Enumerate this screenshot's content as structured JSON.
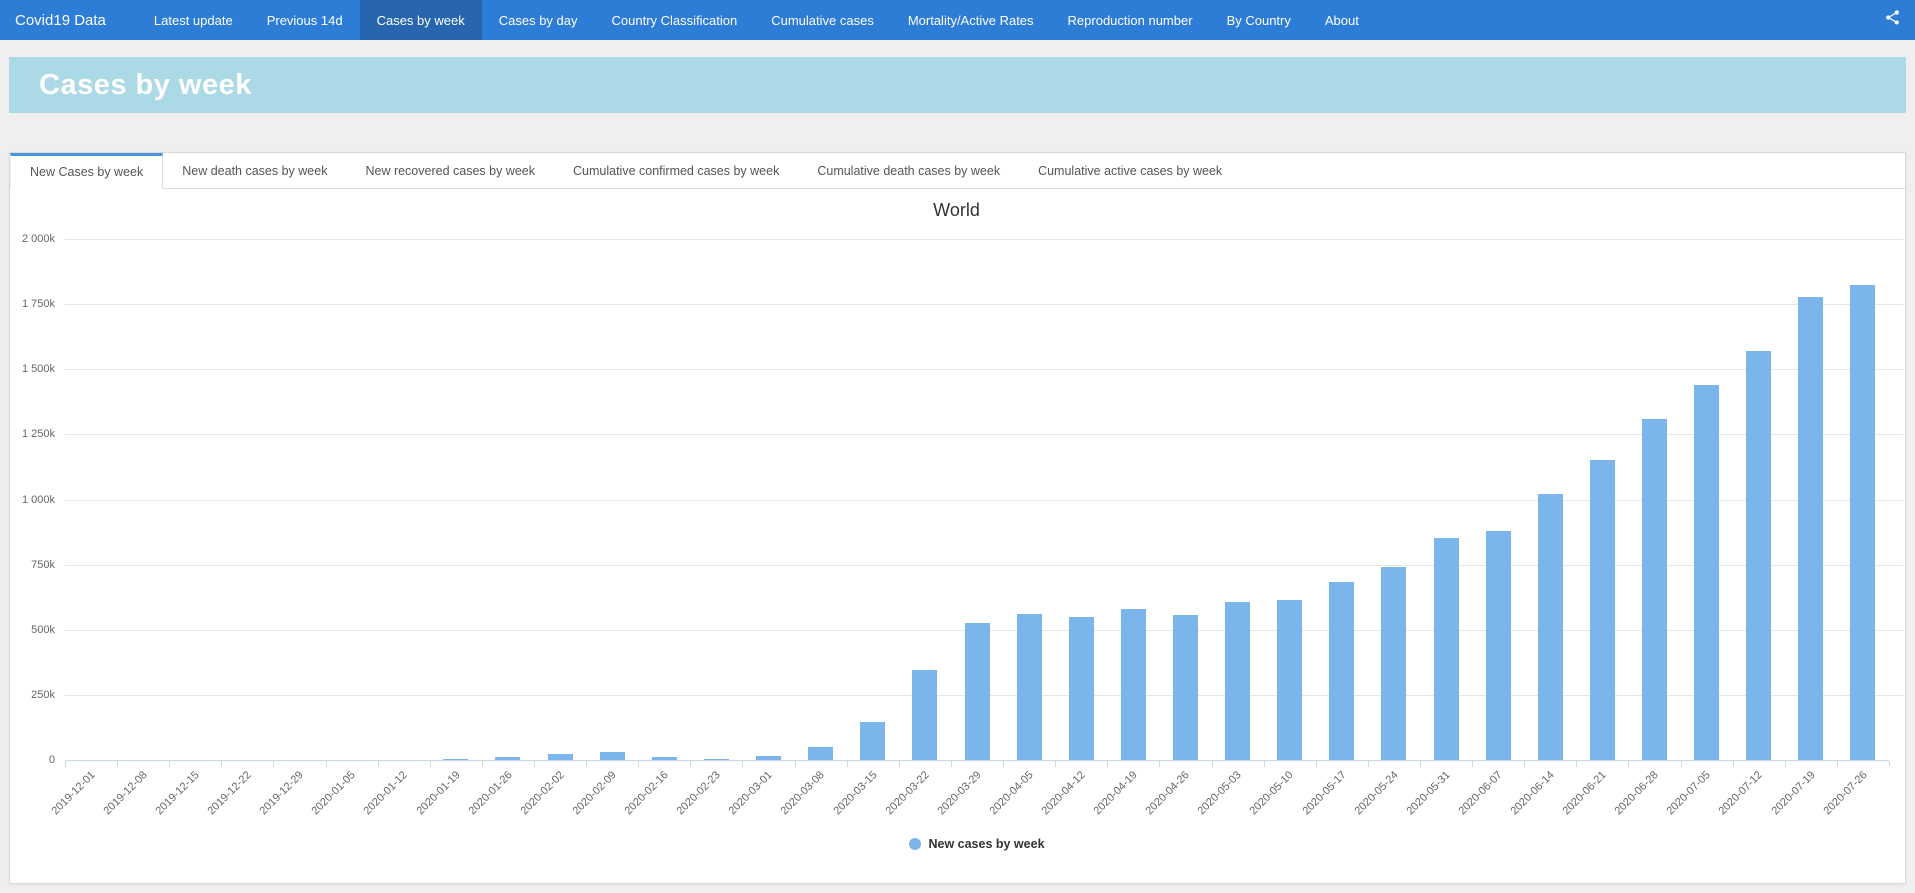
{
  "navbar": {
    "brand": "Covid19 Data",
    "items": [
      {
        "label": "Latest update",
        "active": false
      },
      {
        "label": "Previous 14d",
        "active": false
      },
      {
        "label": "Cases by week",
        "active": true
      },
      {
        "label": "Cases by day",
        "active": false
      },
      {
        "label": "Country Classification",
        "active": false
      },
      {
        "label": "Cumulative cases",
        "active": false
      },
      {
        "label": "Mortality/Active Rates",
        "active": false
      },
      {
        "label": "Reproduction number",
        "active": false
      },
      {
        "label": "By Country",
        "active": false
      },
      {
        "label": "About",
        "active": false
      }
    ],
    "share_icon": "share-icon"
  },
  "page_header": {
    "title": "Cases by week"
  },
  "tabs": [
    {
      "label": "New Cases by week",
      "active": true
    },
    {
      "label": "New death cases by week",
      "active": false
    },
    {
      "label": "New recovered cases by week",
      "active": false
    },
    {
      "label": "Cumulative confirmed cases by week",
      "active": false
    },
    {
      "label": "Cumulative death cases by week",
      "active": false
    },
    {
      "label": "Cumulative active cases by week",
      "active": false
    }
  ],
  "colors": {
    "nav_bg": "#2d7cd6",
    "nav_active_bg": "#2765ae",
    "banner_bg": "#abd9e6",
    "tab_accent": "#4a96db",
    "bar": "#7cb5ec",
    "gridline": "#e6e6e6",
    "axis_line": "#ccd6eb"
  },
  "chart_data": {
    "type": "bar",
    "title": "World",
    "categories": [
      "2019-12-01",
      "2019-12-08",
      "2019-12-15",
      "2019-12-22",
      "2019-12-29",
      "2020-01-05",
      "2020-01-12",
      "2020-01-19",
      "2020-01-26",
      "2020-02-02",
      "2020-02-09",
      "2020-02-16",
      "2020-02-23",
      "2020-03-01",
      "2020-03-08",
      "2020-03-15",
      "2020-03-22",
      "2020-03-29",
      "2020-04-05",
      "2020-04-12",
      "2020-04-19",
      "2020-04-26",
      "2020-05-03",
      "2020-05-10",
      "2020-05-17",
      "2020-05-24",
      "2020-05-31",
      "2020-06-07",
      "2020-06-14",
      "2020-06-21",
      "2020-06-28",
      "2020-07-05",
      "2020-07-12",
      "2020-07-19",
      "2020-07-26"
    ],
    "series": [
      {
        "name": "New cases by week",
        "color": "#7cb5ec",
        "unit": "thousands",
        "values_k": [
          0,
          0,
          0,
          0,
          0,
          0,
          1,
          3,
          13,
          22,
          30,
          11,
          5,
          17,
          48,
          147,
          345,
          525,
          560,
          548,
          580,
          557,
          608,
          615,
          685,
          740,
          851,
          878,
          1022,
          1153,
          1308,
          1441,
          1570,
          1776,
          1823
        ]
      }
    ],
    "xlabel": "",
    "ylabel": "",
    "y_ticks": [
      "0",
      "250k",
      "500k",
      "750k",
      "1 000k",
      "1 250k",
      "1 500k",
      "1 750k",
      "2 000k"
    ],
    "ylim_k": [
      0,
      2000
    ],
    "grid": true,
    "legend_position": "bottom",
    "x_label_rotation": -45
  }
}
